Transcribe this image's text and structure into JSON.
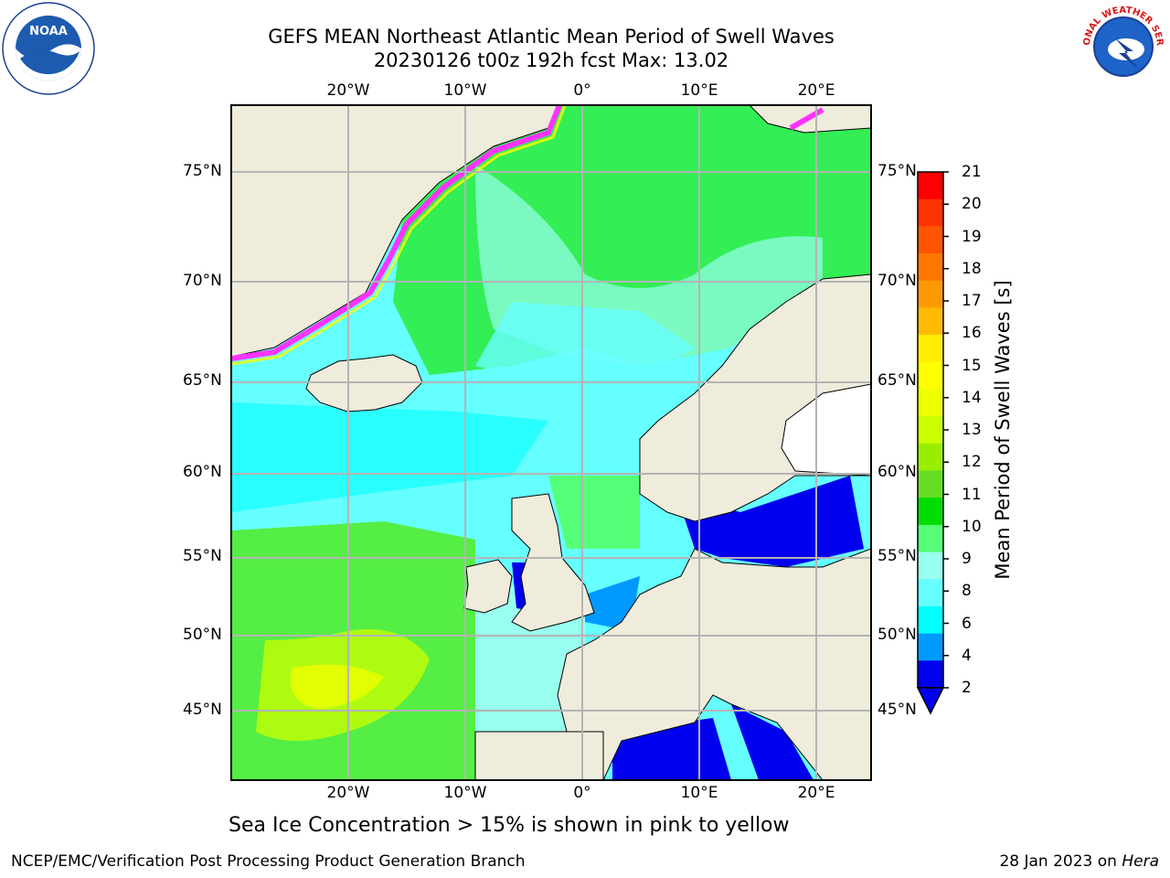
{
  "title": {
    "line1": "GEFS MEAN Northeast Atlantic Mean Period of Swell Waves",
    "line2": "20230126 t00z 192h fcst   Max: 13.02"
  },
  "logos": {
    "left": {
      "icon": "noaa-logo",
      "text": "NOAA"
    },
    "right": {
      "icon": "national-weather-service-logo",
      "text": "NATIONAL WEATHER SERVICE"
    }
  },
  "map": {
    "lon_labels": [
      "20°W",
      "10°W",
      "0°",
      "10°E",
      "20°E"
    ],
    "lat_labels": [
      "75°N",
      "70°N",
      "65°N",
      "60°N",
      "55°N",
      "50°N",
      "45°N"
    ],
    "land_color": "#efecdc",
    "grid_color": "#b4b4b4",
    "sea_ice_colors": [
      "#ff33ff",
      "#ff99cc",
      "#ffff00"
    ]
  },
  "colorbar": {
    "title": "Mean Period of Swell Waves [s]",
    "ticks": [
      "21",
      "20",
      "19",
      "18",
      "17",
      "16",
      "15",
      "14",
      "13",
      "12",
      "11",
      "10",
      "9",
      "8",
      "6",
      "4",
      "2"
    ],
    "colors": [
      "#ff0000",
      "#ff3300",
      "#ff5500",
      "#ff7700",
      "#ff9900",
      "#ffbb00",
      "#ffee00",
      "#ffff00",
      "#eeff00",
      "#ccff00",
      "#99ee00",
      "#66dd22",
      "#00dd00",
      "#55ff77",
      "#99ffee",
      "#66ffff",
      "#00ffff",
      "#0099ff",
      "#0000ee"
    ]
  },
  "note": "Sea Ice Concentration > 15% is shown in pink to yellow",
  "footer": {
    "left": "NCEP/EMC/Verification Post Processing Product Generation Branch",
    "right_date": "28 Jan 2023 on ",
    "right_host": "Hera"
  }
}
